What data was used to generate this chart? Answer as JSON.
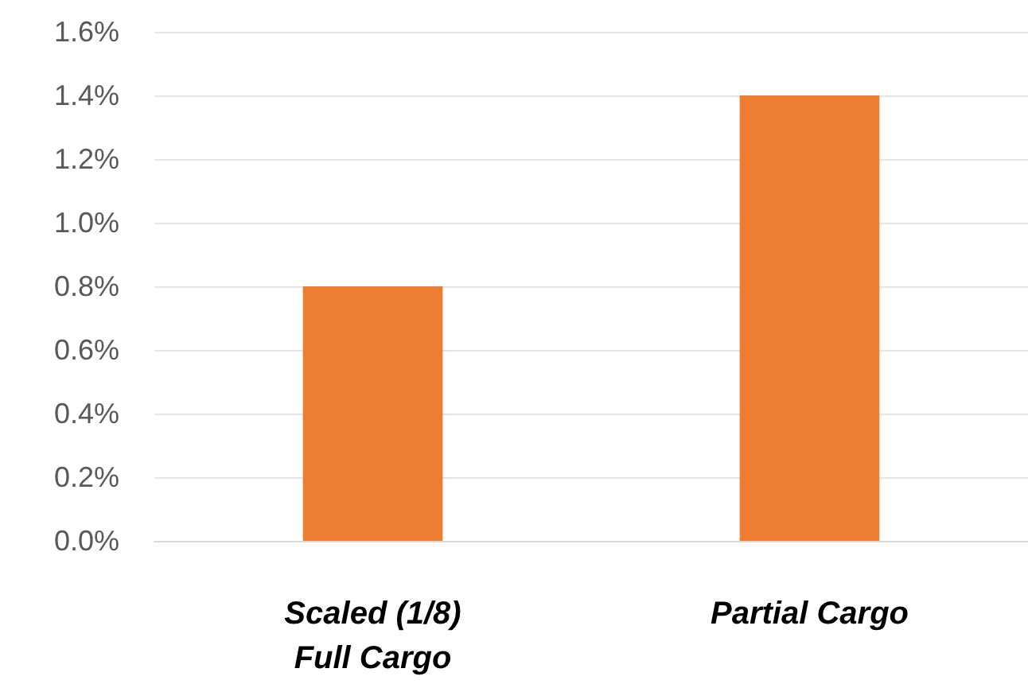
{
  "chart_data": {
    "type": "bar",
    "categories": [
      "Scaled (1/8)\nFull Cargo",
      "Partial Cargo"
    ],
    "values": [
      0.8,
      1.4
    ],
    "color": "#ed7d31",
    "ylim": [
      0,
      1.6
    ],
    "yticks": [
      {
        "value": 0,
        "label": "0.0%"
      },
      {
        "value": 0.2,
        "label": "0.2%"
      },
      {
        "value": 0.4,
        "label": "0.4%"
      },
      {
        "value": 0.6,
        "label": "0.6%"
      },
      {
        "value": 0.8,
        "label": "0.8%"
      },
      {
        "value": 1.0,
        "label": "1.0%"
      },
      {
        "value": 1.2,
        "label": "1.2%"
      },
      {
        "value": 1.4,
        "label": "1.4%"
      },
      {
        "value": 1.6,
        "label": "1.6%"
      }
    ],
    "grid": "y"
  }
}
